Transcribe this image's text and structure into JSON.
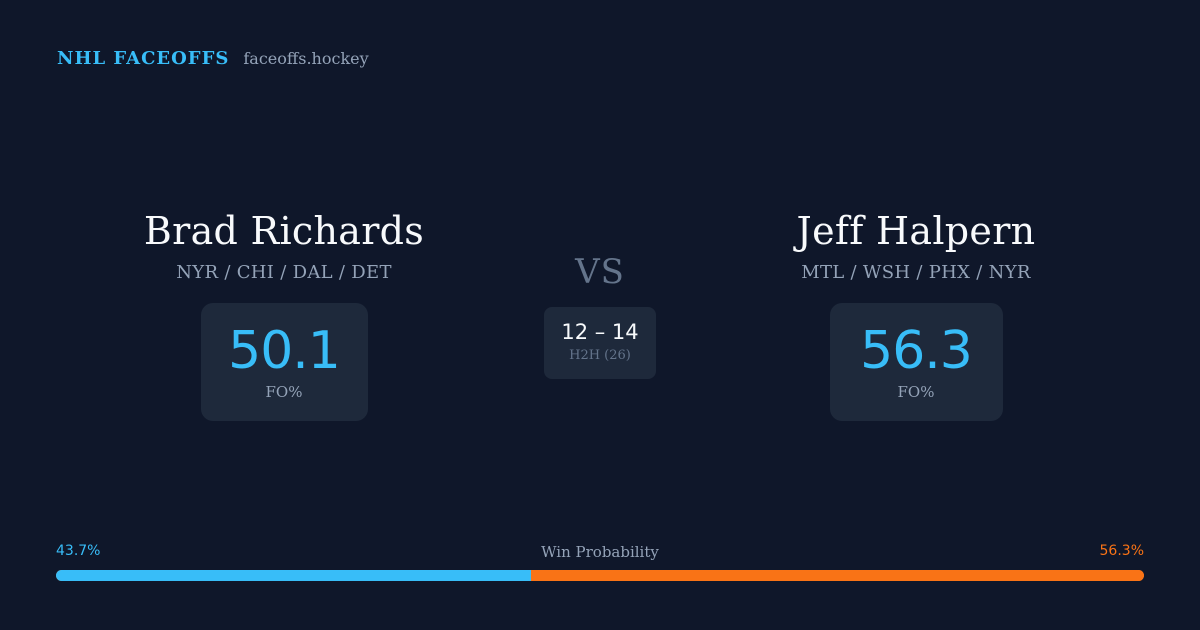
{
  "header": {
    "brand": "NHL FACEOFFS",
    "site": "faceoffs.hockey"
  },
  "player_left": {
    "name": "Brad Richards",
    "teams": "NYR / CHI / DAL / DET",
    "stat_value": "50.1",
    "stat_label": "FO%"
  },
  "player_right": {
    "name": "Jeff Halpern",
    "teams": "MTL / WSH / PHX / NYR",
    "stat_value": "56.3",
    "stat_label": "FO%"
  },
  "versus": {
    "label": "VS",
    "h2h_score": "12 – 14",
    "h2h_label": "H2H (26)"
  },
  "win_probability": {
    "title": "Win Probability",
    "left_label": "43.7%",
    "right_label": "56.3%",
    "left_fraction": 0.437,
    "left_color": "#38bdf8",
    "right_color": "#f97316"
  },
  "colors": {
    "background": "#0f172a",
    "card": "#1e293b",
    "accent": "#38bdf8",
    "secondary_accent": "#f97316"
  }
}
